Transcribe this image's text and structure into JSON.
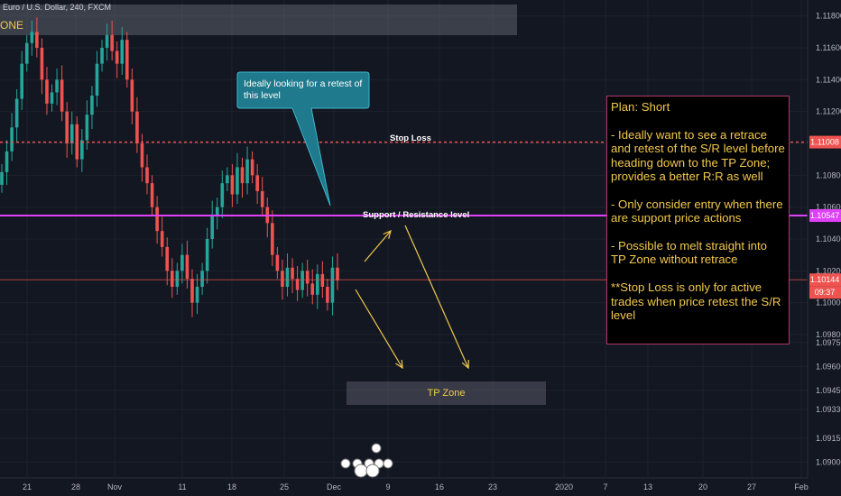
{
  "symbol": "Euro / U.S. Dollar, 240, FXCM",
  "colors": {
    "background": "#131722",
    "bull": "#26a69a",
    "bear": "#ef5350",
    "stop_loss": "#ef5350",
    "support_resistance": "#e040fb",
    "current_price": "#ef5350",
    "arrow": "#f2c94c"
  },
  "chart_data": {
    "type": "candlestick",
    "ylim": [
      1.089,
      1.119
    ],
    "y_ticks": [
      "1.11800",
      "1.11600",
      "1.11400",
      "1.11200",
      "1.11000",
      "1.10800",
      "1.10600",
      "1.10400",
      "1.10200",
      "1.10000",
      "1.09800",
      "1.09750",
      "1.09600",
      "1.09450",
      "1.09330",
      "1.09150",
      "1.09000"
    ],
    "x_ticks": [
      "21",
      "28",
      "Nov",
      "11",
      "18",
      "25",
      "Dec",
      "9",
      "16",
      "23",
      "2020",
      "7",
      "13",
      "20",
      "27",
      "Feb"
    ],
    "price_labels": {
      "stop_loss": "1.11008",
      "support_resistance": "1.10547",
      "current": "1.10144",
      "countdown": "09:37"
    },
    "price_levels": {
      "stop_loss": 1.11008,
      "support_resistance": 1.10547,
      "current": 1.10144
    },
    "series": [
      {
        "name": "close",
        "values": [
          1.1082,
          1.1095,
          1.111,
          1.1128,
          1.115,
          1.1163,
          1.117,
          1.116,
          1.114,
          1.1125,
          1.1132,
          1.114,
          1.112,
          1.11,
          1.1112,
          1.109,
          1.1102,
          1.1118,
          1.113,
          1.115,
          1.116,
          1.1168,
          1.1158,
          1.115,
          1.1165,
          1.114,
          1.112,
          1.11,
          1.1085,
          1.1075,
          1.106,
          1.1045,
          1.1035,
          1.102,
          1.101,
          1.102,
          1.103,
          1.1015,
          1.1,
          1.101,
          1.102,
          1.104,
          1.1055,
          1.106,
          1.1075,
          1.108,
          1.1068,
          1.1085,
          1.1075,
          1.109,
          1.108,
          1.107,
          1.106,
          1.105,
          1.103,
          1.102,
          1.101,
          1.1022,
          1.1015,
          1.1008,
          1.102,
          1.1012,
          1.1005,
          1.1018,
          1.101,
          1.1,
          1.1022,
          1.1014
        ]
      }
    ]
  },
  "annotations": {
    "stop_loss_label": "Stop Loss",
    "sr_label": "Support / Resistance level",
    "tp_zone_label": "TP Zone",
    "top_zone_label": "ONE",
    "callout": "Ideally looking for a retest of this level",
    "plan": "Plan: Short\n\n- Ideally want to see a retrace and retest of the S/R level before heading down to the TP Zone; provides a better R:R as well\n\n- Only consider entry when there are support price actions\n\n- Possible to melt straight into TP Zone without retrace\n\n**Stop Loss is only for active trades when price retest the S/R level"
  }
}
